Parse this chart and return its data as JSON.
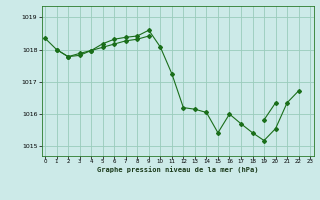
{
  "title": "Graphe pression niveau de la mer (hPa)",
  "background_color": "#cceae8",
  "grid_color": "#99ccbb",
  "line_color": "#1a6e1a",
  "xlim": [
    -0.3,
    23.3
  ],
  "ylim": [
    1014.7,
    1019.35
  ],
  "yticks": [
    1015,
    1016,
    1017,
    1018,
    1019
  ],
  "xticks": [
    0,
    1,
    2,
    3,
    4,
    5,
    6,
    7,
    8,
    9,
    10,
    11,
    12,
    13,
    14,
    15,
    16,
    17,
    18,
    19,
    20,
    21,
    22,
    23
  ],
  "series1_x": [
    0,
    1,
    2,
    3,
    4,
    5,
    6,
    7,
    8,
    9,
    10,
    11,
    12,
    13,
    14,
    15,
    16,
    17,
    18,
    19,
    20,
    21,
    22
  ],
  "series1_y": [
    1018.35,
    1018.0,
    1017.78,
    1017.82,
    1017.97,
    1018.18,
    1018.32,
    1018.38,
    1018.42,
    1018.6,
    1018.08,
    1017.25,
    1016.2,
    1016.15,
    1016.05,
    1015.42,
    1016.0,
    1015.7,
    1015.42,
    1015.18,
    1015.55,
    1016.35,
    1016.72
  ],
  "series2_x": [
    1,
    2,
    3,
    4,
    5,
    6,
    7,
    8,
    9
  ],
  "series2_y": [
    1018.0,
    1017.78,
    1017.88,
    1017.97,
    1018.07,
    1018.17,
    1018.27,
    1018.32,
    1018.42
  ],
  "series3_x": [
    19,
    20
  ],
  "series3_y": [
    1015.82,
    1016.35
  ]
}
